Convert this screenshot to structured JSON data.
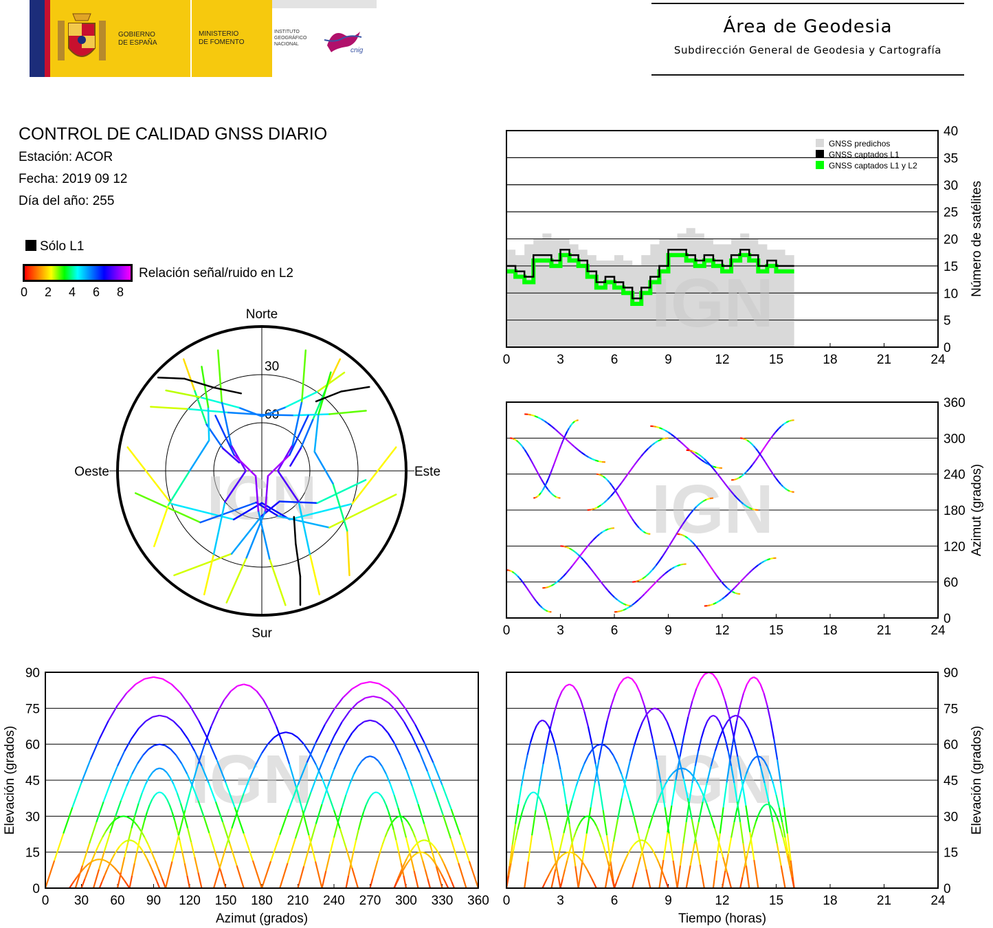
{
  "header": {
    "logo_gobierno_line1": "GOBIERNO",
    "logo_gobierno_line2": "DE ESPAÑA",
    "logo_ministerio_line1": "MINISTERIO",
    "logo_ministerio_line2": "DE FOMENTO",
    "logo_ign_line1": "INSTITUTO",
    "logo_ign_line2": "GEOGRÁFICO",
    "logo_ign_line3": "NACIONAL",
    "logo_cnig": "cnig",
    "area_title": "Área de Geodesia",
    "area_subtitle": "Subdirección General de Geodesia y Cartografía"
  },
  "report": {
    "title": "CONTROL DE CALIDAD GNSS DIARIO",
    "station": "Estación: ACOR",
    "date": "Fecha: 2019 09 12",
    "doy": "Día del año: 255"
  },
  "legend": {
    "only_l1": "Sólo L1",
    "snr_label": "Relación señal/ruido en L2",
    "snr_ticks": [
      "0",
      "2",
      "4",
      "6",
      "8"
    ],
    "colors": [
      "#ff0000",
      "#ff7f00",
      "#ffff00",
      "#00ff00",
      "#00ffff",
      "#007fff",
      "#0000ff",
      "#7f00ff",
      "#ff00ff"
    ]
  },
  "watermark": "IGN",
  "chart_data": [
    {
      "id": "skyplot",
      "type": "scatter",
      "projection": "polar",
      "directions": {
        "north": "Norte",
        "south": "Sur",
        "east": "Este",
        "west": "Oeste"
      },
      "elevation_rings": [
        30,
        60
      ],
      "elevation_labels": [
        "30",
        "60"
      ],
      "tracks": [
        {
          "points": [
            [
              325,
              5
            ],
            [
              320,
              25
            ],
            [
              310,
              45
            ],
            [
              300,
              62
            ],
            [
              290,
              75
            ]
          ],
          "l1_only": false
        },
        {
          "points": [
            [
              35,
              5
            ],
            [
              38,
              25
            ],
            [
              45,
              45
            ],
            [
              60,
              62
            ],
            [
              80,
              72
            ]
          ],
          "l1_only": false
        },
        {
          "points": [
            [
              300,
              10
            ],
            [
              310,
              30
            ],
            [
              330,
              48
            ],
            [
              0,
              55
            ],
            [
              30,
              50
            ],
            [
              50,
              35
            ],
            [
              60,
              15
            ]
          ],
          "l1_only": false
        },
        {
          "points": [
            [
              40,
              10
            ],
            [
              35,
              30
            ],
            [
              20,
              48
            ],
            [
              0,
              56
            ],
            [
              340,
              48
            ],
            [
              320,
              30
            ],
            [
              310,
              12
            ]
          ],
          "l1_only": false
        },
        {
          "points": [
            [
              280,
              5
            ],
            [
              250,
              30
            ],
            [
              210,
              55
            ],
            [
              180,
              70
            ],
            [
              150,
              55
            ],
            [
              110,
              30
            ],
            [
              80,
              5
            ]
          ],
          "l1_only": false
        },
        {
          "points": [
            [
              260,
              10
            ],
            [
              230,
              40
            ],
            [
              190,
              70
            ],
            [
              160,
              60
            ],
            [
              130,
              35
            ],
            [
              100,
              5
            ]
          ],
          "l1_only": false
        },
        {
          "points": [
            [
              220,
              5
            ],
            [
              200,
              35
            ],
            [
              180,
              62
            ],
            [
              150,
              68
            ],
            [
              120,
              50
            ],
            [
              95,
              25
            ]
          ],
          "l1_only": false
        },
        {
          "points": [
            [
              155,
              5
            ],
            [
              150,
              30
            ],
            [
              130,
              60
            ],
            [
              90,
              80
            ],
            [
              50,
              65
            ],
            [
              30,
              40
            ],
            [
              20,
              10
            ]
          ],
          "l1_only": false
        },
        {
          "points": [
            [
              205,
              5
            ],
            [
              210,
              30
            ],
            [
              230,
              60
            ],
            [
              270,
              80
            ],
            [
              310,
              65
            ],
            [
              330,
              40
            ],
            [
              340,
              10
            ]
          ],
          "l1_only": false
        },
        {
          "points": [
            [
              170,
              5
            ],
            [
              175,
              35
            ],
            [
              185,
              65
            ],
            [
              230,
              85
            ],
            [
              300,
              70
            ],
            [
              320,
              45
            ]
          ],
          "l1_only": false
        },
        {
          "points": [
            [
              195,
              5
            ],
            [
              190,
              35
            ],
            [
              175,
              65
            ],
            [
              130,
              85
            ],
            [
              60,
              70
            ],
            [
              40,
              45
            ]
          ],
          "l1_only": false
        },
        {
          "points": [
            [
              140,
              5
            ],
            [
              125,
              25
            ],
            [
              100,
              45
            ],
            [
              70,
              55
            ],
            [
              45,
              40
            ],
            [
              35,
              15
            ]
          ],
          "l1_only": false
        },
        {
          "points": [
            [
              235,
              8
            ],
            [
              250,
              28
            ],
            [
              270,
              45
            ],
            [
              300,
              52
            ],
            [
              320,
              38
            ],
            [
              330,
              15
            ]
          ],
          "l1_only": false
        },
        {
          "points": [
            [
              312,
              3
            ],
            [
              320,
              15
            ],
            [
              330,
              30
            ],
            [
              345,
              40
            ]
          ],
          "l1_only": true
        },
        {
          "points": [
            [
              52,
              5
            ],
            [
              45,
              20
            ],
            [
              38,
              35
            ]
          ],
          "l1_only": true
        },
        {
          "points": [
            [
              164,
              3
            ],
            [
              160,
              20
            ],
            [
              155,
              40
            ],
            [
              145,
              55
            ]
          ],
          "l1_only": true
        }
      ]
    },
    {
      "id": "satellite-count",
      "type": "area",
      "xlim": [
        0,
        24
      ],
      "ylim": [
        0,
        40
      ],
      "ylabel": "Número de satélites",
      "xticks": [
        0,
        3,
        6,
        9,
        12,
        15,
        18,
        21,
        24
      ],
      "yticks": [
        0,
        5,
        10,
        15,
        20,
        25,
        30,
        35,
        40
      ],
      "legend_position": "top-right",
      "series": [
        {
          "name": "GNSS predichos",
          "color": "#d9d9d9",
          "x": [
            0,
            0.5,
            1,
            1.5,
            2,
            2.5,
            3,
            3.5,
            4,
            4.5,
            5,
            5.5,
            6,
            6.5,
            7,
            7.5,
            8,
            8.5,
            9,
            9.5,
            10,
            10.5,
            11,
            11.5,
            12,
            12.5,
            13,
            13.5,
            14,
            14.5,
            15,
            15.5,
            16
          ],
          "values": [
            18,
            17,
            19,
            20,
            21,
            20,
            20,
            19,
            18,
            17,
            16,
            16,
            17,
            16,
            15,
            17,
            19,
            20,
            20,
            21,
            22,
            21,
            20,
            19,
            19,
            20,
            21,
            20,
            19,
            18,
            18,
            17,
            18
          ]
        },
        {
          "name": "GNSS captados L1",
          "color": "#000000",
          "x": [
            0,
            0.5,
            1,
            1.5,
            2,
            2.5,
            3,
            3.5,
            4,
            4.5,
            5,
            5.5,
            6,
            6.5,
            7,
            7.5,
            8,
            8.5,
            9,
            9.5,
            10,
            10.5,
            11,
            11.5,
            12,
            12.5,
            13,
            13.5,
            14,
            14.5,
            15,
            15.5,
            16
          ],
          "values": [
            15,
            14,
            13,
            17,
            17,
            16,
            18,
            17,
            16,
            14,
            12,
            13,
            12,
            11,
            9,
            11,
            13,
            15,
            18,
            18,
            17,
            16,
            17,
            16,
            15,
            17,
            18,
            17,
            15,
            16,
            15,
            15,
            15
          ]
        },
        {
          "name": "GNSS captados L1 y L2",
          "color": "#00ff00",
          "x": [
            0,
            0.5,
            1,
            1.5,
            2,
            2.5,
            3,
            3.5,
            4,
            4.5,
            5,
            5.5,
            6,
            6.5,
            7,
            7.5,
            8,
            8.5,
            9,
            9.5,
            10,
            10.5,
            11,
            11.5,
            12,
            12.5,
            13,
            13.5,
            14,
            14.5,
            15,
            15.5,
            16
          ],
          "values": [
            14,
            13,
            12,
            16,
            16,
            15,
            17,
            16,
            15,
            13,
            11,
            12,
            11,
            10,
            8,
            10,
            12,
            14,
            17,
            17,
            16,
            15,
            16,
            15,
            14,
            16,
            17,
            16,
            14,
            15,
            14,
            14,
            14
          ]
        }
      ]
    },
    {
      "id": "azimuth-time",
      "type": "scatter",
      "xlim": [
        0,
        24
      ],
      "ylim": [
        0,
        360
      ],
      "ylabel": "Azimut (grados)",
      "xticks": [
        0,
        3,
        6,
        9,
        12,
        15,
        18,
        21,
        24
      ],
      "yticks": [
        0,
        60,
        120,
        180,
        240,
        300,
        360
      ]
    },
    {
      "id": "elevation-azimuth",
      "type": "scatter",
      "xlim": [
        0,
        360
      ],
      "ylim": [
        0,
        90
      ],
      "xlabel": "Azimut (grados)",
      "ylabel": "Elevación (grados)",
      "xticks": [
        0,
        30,
        60,
        90,
        120,
        150,
        180,
        210,
        240,
        270,
        300,
        330,
        360
      ],
      "yticks": [
        0,
        15,
        30,
        45,
        60,
        75,
        90
      ]
    },
    {
      "id": "elevation-time",
      "type": "scatter",
      "xlim": [
        0,
        24
      ],
      "ylim": [
        0,
        90
      ],
      "xlabel": "Tiempo (horas)",
      "ylabel": "Elevación (grados)",
      "xticks": [
        0,
        3,
        6,
        9,
        12,
        15,
        18,
        21,
        24
      ],
      "yticks": [
        0,
        15,
        30,
        45,
        60,
        75,
        90
      ]
    }
  ]
}
